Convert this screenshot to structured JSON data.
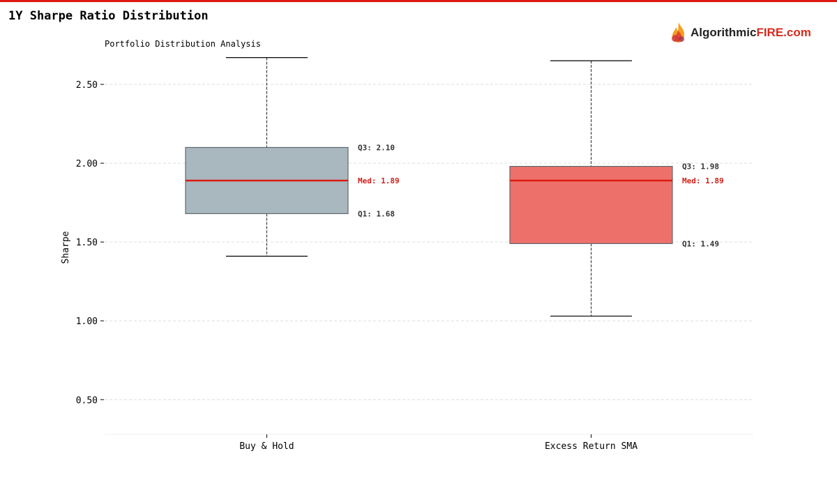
{
  "page": {
    "title": "1Y Sharpe Ratio Distribution"
  },
  "brand": {
    "name_part1": "Algorithmic",
    "name_part2": "FIRE.com",
    "icon": "flame-logo-icon",
    "color_accent": "#d52b1e"
  },
  "chart_data": {
    "type": "box",
    "title": "Portfolio Distribution Analysis",
    "xlabel": "",
    "ylabel": "Sharpe",
    "ylim": [
      0.28,
      2.77
    ],
    "yticks": [
      0.5,
      1.0,
      1.5,
      2.0,
      2.5
    ],
    "ytick_labels": [
      "0.50",
      "1.00",
      "1.50",
      "2.00",
      "2.50"
    ],
    "grid": true,
    "categories": [
      "Buy & Hold",
      "Excess Return SMA"
    ],
    "boxes": [
      {
        "category": "Buy & Hold",
        "whisker_low": 1.41,
        "q1": 1.68,
        "median": 1.89,
        "q3": 2.1,
        "whisker_high": 2.67,
        "q1_label": "Q1: 1.68",
        "median_label": "Med: 1.89",
        "q3_label": "Q3: 2.10",
        "fill": "#a9b8bf"
      },
      {
        "category": "Excess Return SMA",
        "whisker_low": 1.03,
        "q1": 1.49,
        "median": 1.89,
        "q3": 1.98,
        "whisker_high": 2.65,
        "q1_label": "Q1: 1.49",
        "median_label": "Med: 1.89",
        "q3_label": "Q3: 1.98",
        "fill": "#ed716a"
      }
    ],
    "colors": {
      "median_line": "#dd1a12",
      "median_text": "#d0201a",
      "box_edge": "#5f6a70",
      "grid": "#dddddd",
      "whisker": "#222222"
    }
  }
}
